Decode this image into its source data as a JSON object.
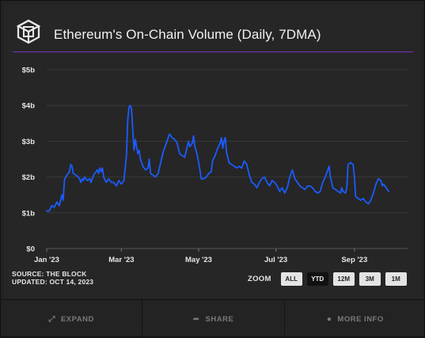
{
  "header": {
    "title": "Ethereum's On-Chain Volume (Daily, 7DMA)"
  },
  "source": {
    "line1": "SOURCE: THE BLOCK",
    "line2": "UPDATED: OCT 14, 2023"
  },
  "zoom": {
    "label": "ZOOM",
    "options": [
      "ALL",
      "YTD",
      "12M",
      "3M",
      "1M"
    ],
    "active": "YTD"
  },
  "footer": {
    "expand": "EXPAND",
    "share": "SHARE",
    "more_info": "MORE INFO"
  },
  "colors": {
    "line": "#1a5cff",
    "accent_rule": "#7b2fd1",
    "grid": "#3a3a3a"
  },
  "chart_data": {
    "type": "line",
    "title": "Ethereum's On-Chain Volume (Daily, 7DMA)",
    "x_ticks": [
      "Jan '23",
      "Mar '23",
      "May '23",
      "Jul '23",
      "Sep '23"
    ],
    "x_tick_days": [
      0,
      59,
      120,
      181,
      243
    ],
    "y_ticks": [
      "$0",
      "$1b",
      "$2b",
      "$3b",
      "$4b",
      "$5b"
    ],
    "ylim": [
      0,
      5
    ],
    "xlim_days": [
      0,
      285
    ],
    "x_start": "2023-01-01",
    "grid": "horizontal",
    "series": [
      {
        "name": "On-Chain Volume (7DMA, $b)",
        "points": [
          [
            0,
            1.05
          ],
          [
            2,
            1.05
          ],
          [
            4,
            1.2
          ],
          [
            6,
            1.15
          ],
          [
            8,
            1.3
          ],
          [
            10,
            1.2
          ],
          [
            12,
            1.5
          ],
          [
            13,
            1.35
          ],
          [
            14,
            1.9
          ],
          [
            15,
            2.0
          ],
          [
            16,
            2.05
          ],
          [
            18,
            2.15
          ],
          [
            19,
            2.35
          ],
          [
            20,
            2.3
          ],
          [
            21,
            2.1
          ],
          [
            23,
            2.05
          ],
          [
            25,
            2.0
          ],
          [
            26,
            1.95
          ],
          [
            27,
            1.85
          ],
          [
            28,
            1.95
          ],
          [
            29,
            1.9
          ],
          [
            30,
            2.0
          ],
          [
            32,
            1.9
          ],
          [
            34,
            1.95
          ],
          [
            35,
            1.85
          ],
          [
            36,
            1.95
          ],
          [
            37,
            2.05
          ],
          [
            38,
            2.1
          ],
          [
            40,
            2.2
          ],
          [
            41,
            2.1
          ],
          [
            42,
            2.25
          ],
          [
            43,
            2.15
          ],
          [
            44,
            2.25
          ],
          [
            45,
            2.0
          ],
          [
            47,
            1.85
          ],
          [
            49,
            1.95
          ],
          [
            51,
            1.85
          ],
          [
            53,
            1.85
          ],
          [
            55,
            1.75
          ],
          [
            57,
            1.9
          ],
          [
            59,
            1.8
          ],
          [
            61,
            1.9
          ],
          [
            63,
            2.6
          ],
          [
            64,
            3.6
          ],
          [
            65,
            3.95
          ],
          [
            66,
            4.0
          ],
          [
            67,
            3.9
          ],
          [
            68,
            3.3
          ],
          [
            69,
            2.75
          ],
          [
            70,
            3.05
          ],
          [
            71,
            2.85
          ],
          [
            72,
            2.65
          ],
          [
            73,
            2.75
          ],
          [
            74,
            2.5
          ],
          [
            76,
            2.3
          ],
          [
            78,
            2.2
          ],
          [
            80,
            2.25
          ],
          [
            81,
            2.5
          ],
          [
            82,
            2.1
          ],
          [
            84,
            2.05
          ],
          [
            86,
            2.0
          ],
          [
            88,
            2.1
          ],
          [
            90,
            2.4
          ],
          [
            92,
            2.7
          ],
          [
            94,
            2.9
          ],
          [
            96,
            3.1
          ],
          [
            97,
            3.2
          ],
          [
            99,
            3.1
          ],
          [
            101,
            3.05
          ],
          [
            103,
            2.95
          ],
          [
            105,
            2.65
          ],
          [
            107,
            2.6
          ],
          [
            109,
            2.55
          ],
          [
            111,
            2.85
          ],
          [
            112,
            3.0
          ],
          [
            113,
            2.85
          ],
          [
            115,
            2.95
          ],
          [
            116,
            3.15
          ],
          [
            117,
            2.85
          ],
          [
            119,
            2.6
          ],
          [
            121,
            2.2
          ],
          [
            122,
            1.95
          ],
          [
            124,
            1.95
          ],
          [
            126,
            2.0
          ],
          [
            128,
            2.1
          ],
          [
            130,
            2.15
          ],
          [
            131,
            2.45
          ],
          [
            133,
            2.6
          ],
          [
            135,
            2.8
          ],
          [
            137,
            2.95
          ],
          [
            138,
            3.1
          ],
          [
            139,
            2.8
          ],
          [
            140,
            3.0
          ],
          [
            141,
            3.1
          ],
          [
            142,
            2.7
          ],
          [
            144,
            2.4
          ],
          [
            146,
            2.35
          ],
          [
            148,
            2.3
          ],
          [
            150,
            2.25
          ],
          [
            152,
            2.3
          ],
          [
            154,
            2.25
          ],
          [
            156,
            2.45
          ],
          [
            158,
            2.35
          ],
          [
            160,
            2.05
          ],
          [
            162,
            1.85
          ],
          [
            164,
            1.8
          ],
          [
            166,
            1.7
          ],
          [
            168,
            1.85
          ],
          [
            170,
            1.95
          ],
          [
            172,
            2.0
          ],
          [
            174,
            1.85
          ],
          [
            176,
            1.75
          ],
          [
            178,
            1.9
          ],
          [
            180,
            1.85
          ],
          [
            182,
            1.75
          ],
          [
            184,
            1.6
          ],
          [
            186,
            1.7
          ],
          [
            188,
            1.55
          ],
          [
            190,
            1.7
          ],
          [
            192,
            2.0
          ],
          [
            194,
            2.2
          ],
          [
            196,
            1.95
          ],
          [
            198,
            1.85
          ],
          [
            200,
            1.75
          ],
          [
            202,
            1.7
          ],
          [
            204,
            1.65
          ],
          [
            206,
            1.75
          ],
          [
            208,
            1.75
          ],
          [
            210,
            1.7
          ],
          [
            212,
            1.6
          ],
          [
            214,
            1.55
          ],
          [
            216,
            1.6
          ],
          [
            218,
            1.85
          ],
          [
            220,
            2.0
          ],
          [
            222,
            2.2
          ],
          [
            223,
            2.3
          ],
          [
            224,
            2.0
          ],
          [
            226,
            1.7
          ],
          [
            228,
            1.65
          ],
          [
            230,
            1.6
          ],
          [
            232,
            1.55
          ],
          [
            233,
            1.7
          ],
          [
            234,
            1.6
          ],
          [
            236,
            1.55
          ],
          [
            237,
            1.7
          ],
          [
            238,
            2.35
          ],
          [
            240,
            2.4
          ],
          [
            242,
            2.35
          ],
          [
            243,
            2.0
          ],
          [
            244,
            1.45
          ],
          [
            246,
            1.4
          ],
          [
            248,
            1.35
          ],
          [
            250,
            1.4
          ],
          [
            252,
            1.3
          ],
          [
            254,
            1.25
          ],
          [
            256,
            1.35
          ],
          [
            258,
            1.55
          ],
          [
            260,
            1.8
          ],
          [
            262,
            1.95
          ],
          [
            264,
            1.9
          ],
          [
            265,
            1.75
          ],
          [
            266,
            1.8
          ],
          [
            268,
            1.7
          ],
          [
            269,
            1.65
          ],
          [
            270,
            1.6
          ]
        ]
      }
    ]
  }
}
